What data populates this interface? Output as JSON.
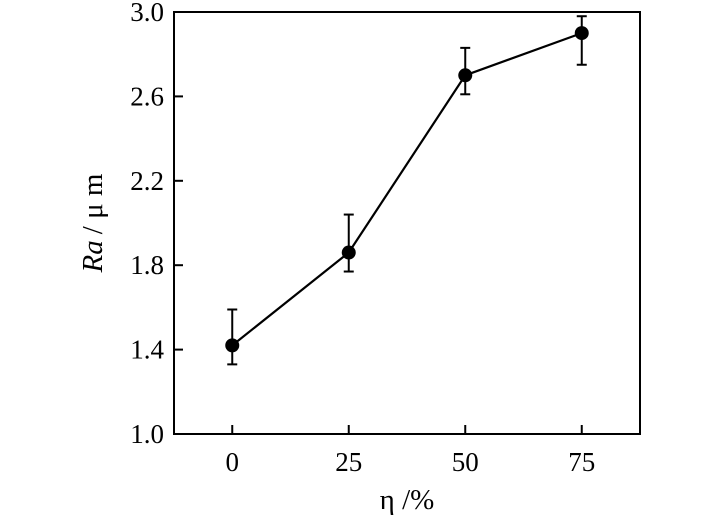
{
  "chart_data": {
    "type": "line",
    "x": [
      0,
      25,
      50,
      75
    ],
    "xticks": [
      "0",
      "25",
      "50",
      "75"
    ],
    "xlim": [
      -12.5,
      87.5
    ],
    "ylim": [
      1.0,
      3.0
    ],
    "yticks": [
      "1.0",
      "1.4",
      "1.8",
      "2.2",
      "2.6",
      "3.0"
    ],
    "xlabel": "η /%",
    "ylabel": "Ra / μ m",
    "ylabel_parts": {
      "var": "Ra",
      "unit": "/ μ m"
    },
    "grid": false,
    "legend": "none",
    "series": [
      {
        "values": [
          1.42,
          1.86,
          2.7,
          2.9
        ],
        "error_upper": [
          1.59,
          2.04,
          2.83,
          2.98
        ],
        "error_lower": [
          1.33,
          1.77,
          2.61,
          2.75
        ],
        "color": "#000000",
        "marker": "circle"
      }
    ]
  }
}
